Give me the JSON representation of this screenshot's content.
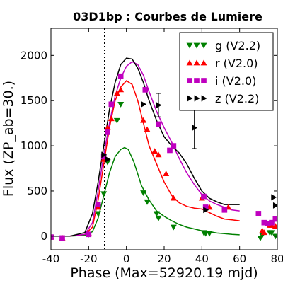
{
  "chart_data": {
    "type": "scatter",
    "title": "03D1bp : Courbes de Lumiere",
    "xlabel": "Phase (Max=52920.19 mjd)",
    "ylabel": "Flux (ZP_ab=30.)",
    "xlim": [
      -40,
      80
    ],
    "ylim": [
      -150,
      2300
    ],
    "xticks": [
      -40,
      -20,
      0,
      20,
      40,
      60,
      80
    ],
    "yticks": [
      0,
      500,
      1000,
      1500,
      2000
    ],
    "grid": false,
    "legend_position": "top-right",
    "reference_line_x": -11.5,
    "series": [
      {
        "name": "g (V2.2)",
        "color": "#008000",
        "marker": "triangle-down",
        "points": [
          [
            -40,
            -10
          ],
          [
            -34,
            -20
          ],
          [
            -20,
            20
          ],
          [
            -15,
            250
          ],
          [
            -12,
            470
          ],
          [
            -10,
            820
          ],
          [
            -5,
            1280
          ],
          [
            -3,
            1460
          ],
          [
            9,
            480
          ],
          [
            11,
            380
          ],
          [
            16,
            250
          ],
          [
            17,
            200
          ],
          [
            25,
            100
          ],
          [
            41,
            40
          ],
          [
            42,
            30
          ],
          [
            44,
            30
          ],
          [
            71,
            -20
          ],
          [
            72,
            10
          ],
          [
            76,
            40
          ],
          [
            77,
            40
          ],
          [
            79,
            0
          ]
        ],
        "curve": [
          [
            -40,
            0
          ],
          [
            -30,
            0
          ],
          [
            -22,
            10
          ],
          [
            -18,
            50
          ],
          [
            -15,
            200
          ],
          [
            -12,
            450
          ],
          [
            -9,
            700
          ],
          [
            -6,
            880
          ],
          [
            -3,
            960
          ],
          [
            -1,
            980
          ],
          [
            1,
            960
          ],
          [
            4,
            820
          ],
          [
            8,
            560
          ],
          [
            12,
            400
          ],
          [
            16,
            280
          ],
          [
            20,
            220
          ],
          [
            24,
            170
          ],
          [
            28,
            130
          ],
          [
            32,
            100
          ],
          [
            36,
            80
          ],
          [
            40,
            60
          ],
          [
            44,
            50
          ],
          [
            48,
            35
          ],
          [
            52,
            28
          ],
          [
            56,
            20
          ],
          [
            60,
            15
          ]
        ]
      },
      {
        "name": "r (V2.0)",
        "color": "#ff0000",
        "marker": "triangle-up",
        "points": [
          [
            -40,
            -10
          ],
          [
            -34,
            -20
          ],
          [
            -20,
            30
          ],
          [
            -15,
            320
          ],
          [
            -12,
            850
          ],
          [
            -10,
            1200
          ],
          [
            -8,
            1300
          ],
          [
            -5,
            1580
          ],
          [
            -3,
            1620
          ],
          [
            9,
            1280
          ],
          [
            11,
            1180
          ],
          [
            15,
            940
          ],
          [
            17,
            900
          ],
          [
            21,
            690
          ],
          [
            25,
            420
          ],
          [
            40,
            420
          ],
          [
            44,
            320
          ],
          [
            54,
            320
          ],
          [
            72,
            60
          ],
          [
            73,
            40
          ],
          [
            76,
            120
          ],
          [
            77,
            120
          ],
          [
            79,
            110
          ]
        ],
        "curve": [
          [
            -40,
            0
          ],
          [
            -30,
            0
          ],
          [
            -22,
            20
          ],
          [
            -18,
            100
          ],
          [
            -15,
            400
          ],
          [
            -12,
            800
          ],
          [
            -9,
            1200
          ],
          [
            -6,
            1500
          ],
          [
            -3,
            1650
          ],
          [
            0,
            1720
          ],
          [
            3,
            1680
          ],
          [
            6,
            1500
          ],
          [
            9,
            1250
          ],
          [
            12,
            1000
          ],
          [
            16,
            800
          ],
          [
            20,
            600
          ],
          [
            24,
            450
          ],
          [
            28,
            370
          ],
          [
            32,
            330
          ],
          [
            36,
            310
          ],
          [
            40,
            300
          ],
          [
            44,
            260
          ],
          [
            48,
            220
          ],
          [
            52,
            190
          ],
          [
            56,
            180
          ],
          [
            60,
            170
          ]
        ]
      },
      {
        "name": "i (V2.0)",
        "color": "#bf00bf",
        "marker": "square",
        "points": [
          [
            -40,
            -10
          ],
          [
            -34,
            -20
          ],
          [
            -20,
            20
          ],
          [
            -15,
            350
          ],
          [
            -12,
            880
          ],
          [
            -10,
            1150
          ],
          [
            -8,
            1460
          ],
          [
            -3,
            1770
          ],
          [
            10,
            1620
          ],
          [
            17,
            1240
          ],
          [
            23,
            950
          ],
          [
            25,
            1000
          ],
          [
            41,
            440
          ],
          [
            42,
            320
          ],
          [
            52,
            290
          ],
          [
            70,
            250
          ],
          [
            73,
            150
          ],
          [
            75,
            140
          ],
          [
            77,
            150
          ],
          [
            79,
            190
          ]
        ],
        "curve": [
          [
            -40,
            0
          ],
          [
            -30,
            0
          ],
          [
            -22,
            20
          ],
          [
            -18,
            150
          ],
          [
            -15,
            500
          ],
          [
            -12,
            900
          ],
          [
            -9,
            1250
          ],
          [
            -6,
            1550
          ],
          [
            -3,
            1750
          ],
          [
            0,
            1880
          ],
          [
            3,
            1930
          ],
          [
            6,
            1900
          ],
          [
            9,
            1780
          ],
          [
            12,
            1600
          ],
          [
            16,
            1380
          ],
          [
            20,
            1200
          ],
          [
            24,
            1040
          ],
          [
            28,
            860
          ],
          [
            32,
            700
          ],
          [
            36,
            570
          ],
          [
            40,
            460
          ],
          [
            44,
            390
          ],
          [
            48,
            350
          ],
          [
            52,
            320
          ],
          [
            56,
            290
          ],
          [
            60,
            280
          ]
        ]
      },
      {
        "name": "z (V2.2)",
        "color": "#000000",
        "marker": "triangle-right",
        "points": [
          [
            -12,
            900
          ],
          [
            -10,
            850
          ],
          [
            9,
            1460
          ],
          [
            17,
            1450
          ],
          [
            36,
            1200
          ],
          [
            42,
            290
          ],
          [
            78,
            430
          ],
          [
            79,
            340
          ]
        ],
        "errorbars": [
          [
            17,
            130
          ],
          [
            36,
            230
          ]
        ],
        "curve": [
          [
            -40,
            0
          ],
          [
            -30,
            0
          ],
          [
            -22,
            40
          ],
          [
            -18,
            250
          ],
          [
            -15,
            600
          ],
          [
            -12,
            1000
          ],
          [
            -9,
            1400
          ],
          [
            -6,
            1700
          ],
          [
            -3,
            1900
          ],
          [
            0,
            1970
          ],
          [
            3,
            1960
          ],
          [
            6,
            1860
          ],
          [
            9,
            1700
          ],
          [
            12,
            1500
          ],
          [
            16,
            1280
          ],
          [
            20,
            1100
          ],
          [
            24,
            1000
          ],
          [
            28,
            920
          ],
          [
            32,
            800
          ],
          [
            36,
            640
          ],
          [
            40,
            500
          ],
          [
            44,
            420
          ],
          [
            48,
            380
          ],
          [
            52,
            350
          ],
          [
            56,
            350
          ],
          [
            60,
            350
          ]
        ]
      }
    ]
  }
}
